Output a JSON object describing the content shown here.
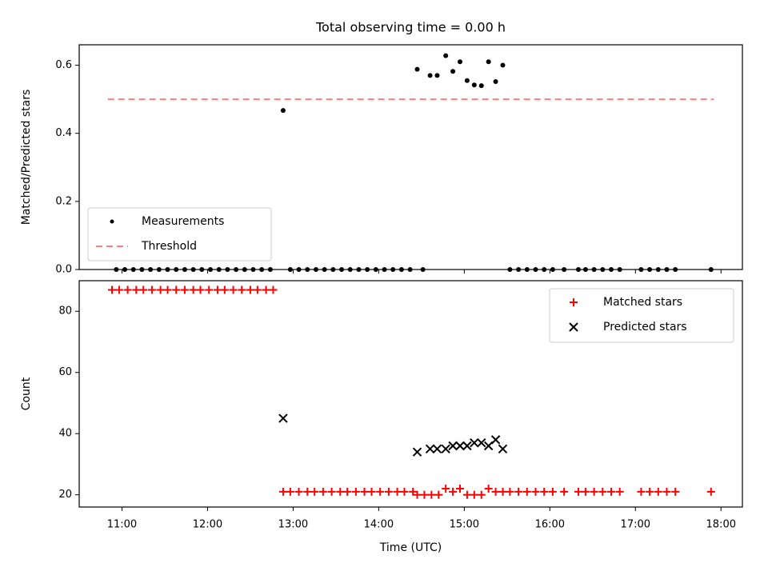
{
  "chart_data": [
    {
      "type": "scatter",
      "title": "Total observing time = 0.00 h",
      "xlabel": "",
      "ylabel": "Matched/Predicted stars",
      "ylim": [
        0,
        0.66
      ],
      "yticks": [
        "0.0",
        "0.2",
        "0.4",
        "0.6"
      ],
      "legend_position": "lower-left",
      "series": [
        {
          "name": "Measurements",
          "kind": "scatter",
          "color": "#000000",
          "points": [
            [
              "10:56",
              0
            ],
            [
              "11:02",
              0
            ],
            [
              "11:08",
              0
            ],
            [
              "11:14",
              0
            ],
            [
              "11:20",
              0
            ],
            [
              "11:26",
              0
            ],
            [
              "11:32",
              0
            ],
            [
              "11:38",
              0
            ],
            [
              "11:44",
              0
            ],
            [
              "11:50",
              0
            ],
            [
              "11:56",
              0
            ],
            [
              "12:02",
              0
            ],
            [
              "12:08",
              0
            ],
            [
              "12:14",
              0
            ],
            [
              "12:20",
              0
            ],
            [
              "12:26",
              0
            ],
            [
              "12:32",
              0
            ],
            [
              "12:38",
              0
            ],
            [
              "12:44",
              0
            ],
            [
              "12:53",
              0.467
            ],
            [
              "12:58",
              0
            ],
            [
              "13:04",
              0
            ],
            [
              "13:10",
              0
            ],
            [
              "13:16",
              0
            ],
            [
              "13:22",
              0
            ],
            [
              "13:28",
              0
            ],
            [
              "13:34",
              0
            ],
            [
              "13:40",
              0
            ],
            [
              "13:46",
              0
            ],
            [
              "13:52",
              0
            ],
            [
              "13:58",
              0
            ],
            [
              "14:04",
              0
            ],
            [
              "14:10",
              0
            ],
            [
              "14:16",
              0
            ],
            [
              "14:22",
              0
            ],
            [
              "14:31",
              0
            ],
            [
              "14:27",
              0.588
            ],
            [
              "14:36",
              0.57
            ],
            [
              "14:41",
              0.57
            ],
            [
              "14:47",
              0.628
            ],
            [
              "14:52",
              0.582
            ],
            [
              "14:57",
              0.61
            ],
            [
              "15:02",
              0.555
            ],
            [
              "15:07",
              0.542
            ],
            [
              "15:12",
              0.54
            ],
            [
              "15:17",
              0.61
            ],
            [
              "15:22",
              0.552
            ],
            [
              "15:27",
              0.6
            ],
            [
              "15:32",
              0
            ],
            [
              "15:38",
              0
            ],
            [
              "15:44",
              0
            ],
            [
              "15:50",
              0
            ],
            [
              "15:56",
              0
            ],
            [
              "16:02",
              0
            ],
            [
              "16:10",
              0
            ],
            [
              "16:20",
              0
            ],
            [
              "16:25",
              0
            ],
            [
              "16:31",
              0
            ],
            [
              "16:37",
              0
            ],
            [
              "16:43",
              0
            ],
            [
              "16:49",
              0
            ],
            [
              "17:04",
              0
            ],
            [
              "17:10",
              0
            ],
            [
              "17:16",
              0
            ],
            [
              "17:22",
              0
            ],
            [
              "17:28",
              0
            ],
            [
              "17:53",
              0
            ]
          ]
        },
        {
          "name": "Threshold",
          "kind": "line",
          "style": "dashed",
          "color": "#ff7f7f",
          "points": [
            [
              "10:50",
              0.5
            ],
            [
              "17:55",
              0.5
            ]
          ]
        }
      ]
    },
    {
      "type": "scatter",
      "title": "",
      "xlabel": "Time (UTC)",
      "ylabel": "Count",
      "ylim": [
        16,
        90
      ],
      "yticks": [
        "20",
        "40",
        "60",
        "80"
      ],
      "xticks": [
        "11:00",
        "12:00",
        "13:00",
        "14:00",
        "15:00",
        "16:00",
        "17:00",
        "18:00"
      ],
      "xlim": [
        "10:30",
        "18:15"
      ],
      "legend_position": "upper-right",
      "series": [
        {
          "name": "Matched stars",
          "marker": "plus",
          "color": "#ff0000",
          "points": [
            [
              "10:53",
              87
            ],
            [
              "10:58",
              87
            ],
            [
              "11:04",
              87
            ],
            [
              "11:10",
              87
            ],
            [
              "11:15",
              87
            ],
            [
              "11:21",
              87
            ],
            [
              "11:27",
              87
            ],
            [
              "11:32",
              87
            ],
            [
              "11:38",
              87
            ],
            [
              "11:44",
              87
            ],
            [
              "11:50",
              87
            ],
            [
              "11:55",
              87
            ],
            [
              "12:01",
              87
            ],
            [
              "12:07",
              87
            ],
            [
              "12:12",
              87
            ],
            [
              "12:18",
              87
            ],
            [
              "12:24",
              87
            ],
            [
              "12:30",
              87
            ],
            [
              "12:35",
              87
            ],
            [
              "12:41",
              87
            ],
            [
              "12:46",
              87
            ],
            [
              "12:53",
              21
            ],
            [
              "12:58",
              21
            ],
            [
              "13:04",
              21
            ],
            [
              "13:10",
              21
            ],
            [
              "13:15",
              21
            ],
            [
              "13:21",
              21
            ],
            [
              "13:27",
              21
            ],
            [
              "13:33",
              21
            ],
            [
              "13:38",
              21
            ],
            [
              "13:44",
              21
            ],
            [
              "13:50",
              21
            ],
            [
              "13:55",
              21
            ],
            [
              "14:01",
              21
            ],
            [
              "14:07",
              21
            ],
            [
              "14:13",
              21
            ],
            [
              "14:18",
              21
            ],
            [
              "14:24",
              21
            ],
            [
              "14:27",
              20
            ],
            [
              "14:32",
              20
            ],
            [
              "14:37",
              20
            ],
            [
              "14:42",
              20
            ],
            [
              "14:47",
              22
            ],
            [
              "14:52",
              21
            ],
            [
              "14:57",
              22
            ],
            [
              "15:02",
              20
            ],
            [
              "15:07",
              20
            ],
            [
              "15:12",
              20
            ],
            [
              "15:17",
              22
            ],
            [
              "15:22",
              21
            ],
            [
              "15:27",
              21
            ],
            [
              "15:32",
              21
            ],
            [
              "15:38",
              21
            ],
            [
              "15:44",
              21
            ],
            [
              "15:50",
              21
            ],
            [
              "15:56",
              21
            ],
            [
              "16:02",
              21
            ],
            [
              "16:10",
              21
            ],
            [
              "16:20",
              21
            ],
            [
              "16:25",
              21
            ],
            [
              "16:31",
              21
            ],
            [
              "16:37",
              21
            ],
            [
              "16:43",
              21
            ],
            [
              "16:49",
              21
            ],
            [
              "17:04",
              21
            ],
            [
              "17:10",
              21
            ],
            [
              "17:16",
              21
            ],
            [
              "17:22",
              21
            ],
            [
              "17:28",
              21
            ],
            [
              "17:53",
              21
            ]
          ]
        },
        {
          "name": "Predicted stars",
          "marker": "x",
          "color": "#000000",
          "points": [
            [
              "12:53",
              45
            ],
            [
              "14:27",
              34
            ],
            [
              "14:36",
              35
            ],
            [
              "14:41",
              35
            ],
            [
              "14:47",
              35
            ],
            [
              "14:52",
              36
            ],
            [
              "14:57",
              36
            ],
            [
              "15:02",
              36
            ],
            [
              "15:07",
              37
            ],
            [
              "15:12",
              37
            ],
            [
              "15:17",
              36
            ],
            [
              "15:22",
              38
            ],
            [
              "15:27",
              35
            ]
          ]
        }
      ]
    }
  ]
}
